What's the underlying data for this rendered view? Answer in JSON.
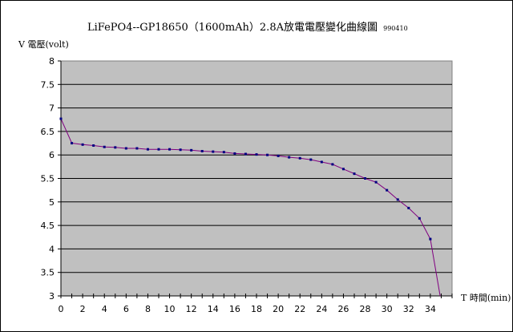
{
  "chart_data": {
    "type": "line",
    "title": "LiFePO4--GP18650（1600mAh）2.8A放電電壓變化曲線圖",
    "title_suffix": "990410",
    "ylabel": "V 電壓(volt)",
    "xlabel": "T 時間(min)",
    "xlim": [
      0,
      36
    ],
    "ylim": [
      3,
      8
    ],
    "x_ticks": [
      0,
      2,
      4,
      6,
      8,
      10,
      12,
      14,
      16,
      18,
      20,
      22,
      24,
      26,
      28,
      30,
      32,
      34
    ],
    "y_ticks": [
      "3",
      "3.5",
      "4",
      "4.5",
      "5",
      "5.5",
      "6",
      "6.5",
      "7",
      "7.5",
      "8"
    ],
    "grid": "horizontal",
    "plot_background": "#c0c0c0",
    "series": [
      {
        "color": "#800080",
        "marker_color": "#000080",
        "x": [
          0,
          1,
          2,
          3,
          4,
          5,
          6,
          7,
          8,
          9,
          10,
          11,
          12,
          13,
          14,
          15,
          16,
          17,
          18,
          19,
          20,
          21,
          22,
          23,
          24,
          25,
          26,
          27,
          28,
          29,
          30,
          31,
          32,
          33,
          34,
          34.9
        ],
        "y": [
          6.77,
          6.25,
          6.22,
          6.2,
          6.17,
          6.16,
          6.14,
          6.14,
          6.12,
          6.12,
          6.12,
          6.11,
          6.1,
          6.08,
          6.07,
          6.06,
          6.03,
          6.02,
          6.01,
          6.0,
          5.98,
          5.95,
          5.93,
          5.9,
          5.85,
          5.8,
          5.7,
          5.6,
          5.5,
          5.42,
          5.25,
          5.05,
          4.87,
          4.65,
          4.21,
          3.0
        ]
      }
    ]
  }
}
